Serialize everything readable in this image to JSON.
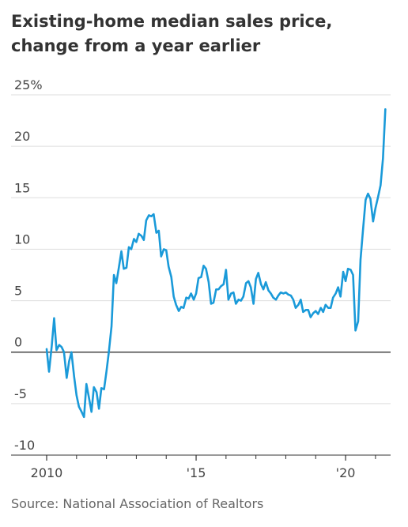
{
  "chart_data": {
    "type": "line",
    "title": "Existing-home median sales price, change from a year earlier",
    "xlabel": "",
    "ylabel": "",
    "unit": "%",
    "xlim": [
      2010.0,
      2021.4
    ],
    "ylim": [
      -10,
      25
    ],
    "y_ticks": [
      {
        "value": 25,
        "label": "25%"
      },
      {
        "value": 20,
        "label": "20"
      },
      {
        "value": 15,
        "label": "15"
      },
      {
        "value": 10,
        "label": "10"
      },
      {
        "value": 5,
        "label": "5"
      },
      {
        "value": 0,
        "label": "0"
      },
      {
        "value": -5,
        "label": "-5"
      },
      {
        "value": -10,
        "label": "-10"
      }
    ],
    "x_ticks": [
      {
        "value": 2010,
        "label": "2010"
      },
      {
        "value": 2015,
        "label": "'15"
      },
      {
        "value": 2020,
        "label": "'20"
      }
    ],
    "x_minor_ticks": [
      2011,
      2012,
      2013,
      2014,
      2016,
      2017,
      2018,
      2019,
      2021
    ],
    "grid": true,
    "color": "#1a9ad9",
    "series": [
      {
        "points": [
          [
            2010.0,
            0.3
          ],
          [
            2010.08,
            -1.9
          ],
          [
            2010.17,
            0.6
          ],
          [
            2010.25,
            3.3
          ],
          [
            2010.33,
            0.2
          ],
          [
            2010.42,
            0.7
          ],
          [
            2010.5,
            0.5
          ],
          [
            2010.58,
            0.0
          ],
          [
            2010.67,
            -2.5
          ],
          [
            2010.75,
            -0.9
          ],
          [
            2010.83,
            0.0
          ],
          [
            2010.92,
            -2.4
          ],
          [
            2011.0,
            -4.2
          ],
          [
            2011.08,
            -5.3
          ],
          [
            2011.17,
            -5.8
          ],
          [
            2011.25,
            -6.3
          ],
          [
            2011.33,
            -3.1
          ],
          [
            2011.42,
            -4.5
          ],
          [
            2011.5,
            -5.8
          ],
          [
            2011.58,
            -3.4
          ],
          [
            2011.67,
            -3.9
          ],
          [
            2011.75,
            -5.5
          ],
          [
            2011.83,
            -3.5
          ],
          [
            2011.92,
            -3.6
          ],
          [
            2012.0,
            -1.9
          ],
          [
            2012.08,
            0.0
          ],
          [
            2012.17,
            2.5
          ],
          [
            2012.25,
            7.5
          ],
          [
            2012.33,
            6.7
          ],
          [
            2012.42,
            8.3
          ],
          [
            2012.5,
            9.8
          ],
          [
            2012.58,
            8.1
          ],
          [
            2012.67,
            8.2
          ],
          [
            2012.75,
            10.2
          ],
          [
            2012.83,
            10.0
          ],
          [
            2012.92,
            11.0
          ],
          [
            2013.0,
            10.7
          ],
          [
            2013.08,
            11.5
          ],
          [
            2013.17,
            11.3
          ],
          [
            2013.25,
            10.9
          ],
          [
            2013.33,
            12.8
          ],
          [
            2013.42,
            13.3
          ],
          [
            2013.5,
            13.2
          ],
          [
            2013.58,
            13.4
          ],
          [
            2013.67,
            11.6
          ],
          [
            2013.75,
            11.8
          ],
          [
            2013.83,
            9.3
          ],
          [
            2013.92,
            10.0
          ],
          [
            2014.0,
            9.9
          ],
          [
            2014.08,
            8.3
          ],
          [
            2014.17,
            7.3
          ],
          [
            2014.25,
            5.4
          ],
          [
            2014.33,
            4.6
          ],
          [
            2014.42,
            4.0
          ],
          [
            2014.5,
            4.4
          ],
          [
            2014.58,
            4.3
          ],
          [
            2014.67,
            5.3
          ],
          [
            2014.75,
            5.2
          ],
          [
            2014.83,
            5.7
          ],
          [
            2014.92,
            5.1
          ],
          [
            2015.0,
            5.7
          ],
          [
            2015.08,
            7.2
          ],
          [
            2015.17,
            7.3
          ],
          [
            2015.25,
            8.4
          ],
          [
            2015.33,
            8.1
          ],
          [
            2015.42,
            6.8
          ],
          [
            2015.5,
            4.7
          ],
          [
            2015.58,
            4.8
          ],
          [
            2015.67,
            6.1
          ],
          [
            2015.75,
            6.1
          ],
          [
            2015.83,
            6.4
          ],
          [
            2015.92,
            6.6
          ],
          [
            2016.0,
            8.0
          ],
          [
            2016.08,
            5.1
          ],
          [
            2016.17,
            5.7
          ],
          [
            2016.25,
            5.8
          ],
          [
            2016.33,
            4.7
          ],
          [
            2016.42,
            5.1
          ],
          [
            2016.5,
            5.0
          ],
          [
            2016.58,
            5.4
          ],
          [
            2016.67,
            6.7
          ],
          [
            2016.75,
            6.9
          ],
          [
            2016.83,
            6.3
          ],
          [
            2016.92,
            4.7
          ],
          [
            2017.0,
            7.1
          ],
          [
            2017.08,
            7.7
          ],
          [
            2017.17,
            6.6
          ],
          [
            2017.25,
            6.1
          ],
          [
            2017.33,
            6.8
          ],
          [
            2017.42,
            6.0
          ],
          [
            2017.5,
            5.7
          ],
          [
            2017.58,
            5.3
          ],
          [
            2017.67,
            5.1
          ],
          [
            2017.75,
            5.5
          ],
          [
            2017.83,
            5.8
          ],
          [
            2017.92,
            5.7
          ],
          [
            2018.0,
            5.8
          ],
          [
            2018.08,
            5.6
          ],
          [
            2018.17,
            5.5
          ],
          [
            2018.25,
            5.1
          ],
          [
            2018.33,
            4.3
          ],
          [
            2018.42,
            4.6
          ],
          [
            2018.5,
            5.1
          ],
          [
            2018.58,
            3.9
          ],
          [
            2018.67,
            4.1
          ],
          [
            2018.75,
            4.1
          ],
          [
            2018.83,
            3.4
          ],
          [
            2018.92,
            3.8
          ],
          [
            2019.0,
            4.0
          ],
          [
            2019.08,
            3.7
          ],
          [
            2019.17,
            4.3
          ],
          [
            2019.25,
            3.9
          ],
          [
            2019.33,
            4.6
          ],
          [
            2019.42,
            4.3
          ],
          [
            2019.5,
            4.3
          ],
          [
            2019.58,
            5.3
          ],
          [
            2019.67,
            5.7
          ],
          [
            2019.75,
            6.3
          ],
          [
            2019.83,
            5.4
          ],
          [
            2019.92,
            7.8
          ],
          [
            2020.0,
            6.9
          ],
          [
            2020.08,
            8.1
          ],
          [
            2020.17,
            8.0
          ],
          [
            2020.25,
            7.5
          ],
          [
            2020.33,
            2.1
          ],
          [
            2020.42,
            3.0
          ],
          [
            2020.5,
            9.0
          ],
          [
            2020.58,
            11.8
          ],
          [
            2020.67,
            14.8
          ],
          [
            2020.75,
            15.4
          ],
          [
            2020.83,
            14.9
          ],
          [
            2020.92,
            12.7
          ],
          [
            2021.0,
            14.0
          ],
          [
            2021.08,
            15.0
          ],
          [
            2021.17,
            16.2
          ],
          [
            2021.25,
            18.8
          ],
          [
            2021.33,
            23.6
          ]
        ]
      }
    ],
    "source": "Source: National Association of Realtors"
  }
}
